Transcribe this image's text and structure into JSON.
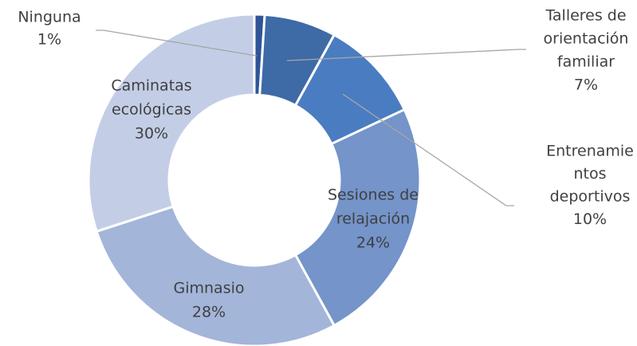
{
  "chart_data": {
    "type": "donut",
    "categories": [
      [
        "Ninguna"
      ],
      [
        "Talleres de",
        "orientación",
        "familiar"
      ],
      [
        "Entrenamie",
        "ntos",
        "deportivos"
      ],
      [
        "Sesiones de",
        "relajación"
      ],
      [
        "Gimnasio"
      ],
      [
        "Caminatas",
        "ecológicas"
      ]
    ],
    "values": [
      1,
      7,
      10,
      24,
      28,
      30
    ],
    "value_labels": [
      "1%",
      "7%",
      "10%",
      "24%",
      "28%",
      "30%"
    ],
    "colors": [
      "#2f5597",
      "#3e6aa6",
      "#4a7cc1",
      "#7494ca",
      "#a3b5d9",
      "#c3cee6"
    ]
  }
}
